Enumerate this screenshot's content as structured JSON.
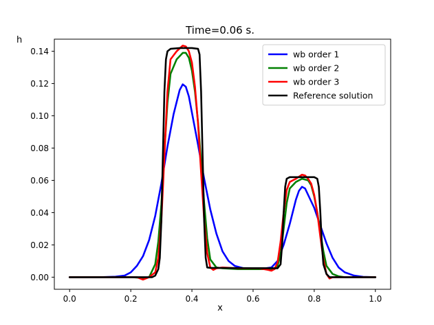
{
  "chart_data": {
    "type": "line",
    "title": "Time=0.06 s.",
    "xlabel": "x",
    "ylabel": "h",
    "xlim": [
      -0.05,
      1.05
    ],
    "ylim": [
      -0.0075,
      0.1475
    ],
    "xticks": [
      0.0,
      0.2,
      0.4,
      0.6,
      0.8,
      1.0
    ],
    "xtick_labels": [
      "0.0",
      "0.2",
      "0.4",
      "0.6",
      "0.8",
      "1.0"
    ],
    "yticks": [
      0.0,
      0.02,
      0.04,
      0.06,
      0.08,
      0.1,
      0.12,
      0.14
    ],
    "ytick_labels": [
      "0.00",
      "0.02",
      "0.04",
      "0.06",
      "0.08",
      "0.10",
      "0.12",
      "0.14"
    ],
    "grid": false,
    "legend_position": "top-right",
    "series": [
      {
        "name": "wb order 1",
        "color": "#0000ff",
        "points": [
          [
            0.0,
            0.0
          ],
          [
            0.1,
            0.0
          ],
          [
            0.15,
            0.0003
          ],
          [
            0.18,
            0.001
          ],
          [
            0.2,
            0.003
          ],
          [
            0.22,
            0.007
          ],
          [
            0.24,
            0.013
          ],
          [
            0.26,
            0.023
          ],
          [
            0.28,
            0.038
          ],
          [
            0.3,
            0.058
          ],
          [
            0.32,
            0.081
          ],
          [
            0.34,
            0.101
          ],
          [
            0.36,
            0.116
          ],
          [
            0.37,
            0.1195
          ],
          [
            0.38,
            0.118
          ],
          [
            0.39,
            0.112
          ],
          [
            0.4,
            0.102
          ],
          [
            0.42,
            0.082
          ],
          [
            0.44,
            0.061
          ],
          [
            0.46,
            0.042
          ],
          [
            0.48,
            0.027
          ],
          [
            0.5,
            0.016
          ],
          [
            0.52,
            0.01
          ],
          [
            0.54,
            0.007
          ],
          [
            0.57,
            0.0055
          ],
          [
            0.62,
            0.005
          ],
          [
            0.66,
            0.006
          ],
          [
            0.68,
            0.01
          ],
          [
            0.7,
            0.02
          ],
          [
            0.72,
            0.033
          ],
          [
            0.74,
            0.048
          ],
          [
            0.75,
            0.0535
          ],
          [
            0.76,
            0.056
          ],
          [
            0.77,
            0.055
          ],
          [
            0.78,
            0.051
          ],
          [
            0.8,
            0.043
          ],
          [
            0.82,
            0.032
          ],
          [
            0.84,
            0.021
          ],
          [
            0.86,
            0.012
          ],
          [
            0.88,
            0.006
          ],
          [
            0.9,
            0.003
          ],
          [
            0.93,
            0.001
          ],
          [
            0.96,
            0.0002
          ],
          [
            1.0,
            0.0
          ]
        ]
      },
      {
        "name": "wb order 2",
        "color": "#008000",
        "points": [
          [
            0.0,
            0.0
          ],
          [
            0.2,
            0.0
          ],
          [
            0.24,
            -0.0005
          ],
          [
            0.26,
            0.0
          ],
          [
            0.28,
            0.008
          ],
          [
            0.29,
            0.022
          ],
          [
            0.3,
            0.045
          ],
          [
            0.31,
            0.078
          ],
          [
            0.32,
            0.108
          ],
          [
            0.33,
            0.126
          ],
          [
            0.35,
            0.135
          ],
          [
            0.37,
            0.139
          ],
          [
            0.38,
            0.139
          ],
          [
            0.39,
            0.136
          ],
          [
            0.4,
            0.128
          ],
          [
            0.41,
            0.115
          ],
          [
            0.42,
            0.096
          ],
          [
            0.43,
            0.072
          ],
          [
            0.44,
            0.046
          ],
          [
            0.45,
            0.024
          ],
          [
            0.46,
            0.011
          ],
          [
            0.48,
            0.006
          ],
          [
            0.5,
            0.0055
          ],
          [
            0.55,
            0.005
          ],
          [
            0.62,
            0.005
          ],
          [
            0.67,
            0.005
          ],
          [
            0.68,
            0.007
          ],
          [
            0.69,
            0.014
          ],
          [
            0.7,
            0.03
          ],
          [
            0.71,
            0.046
          ],
          [
            0.72,
            0.055
          ],
          [
            0.74,
            0.059
          ],
          [
            0.76,
            0.061
          ],
          [
            0.78,
            0.06
          ],
          [
            0.79,
            0.057
          ],
          [
            0.8,
            0.05
          ],
          [
            0.81,
            0.04
          ],
          [
            0.82,
            0.028
          ],
          [
            0.83,
            0.016
          ],
          [
            0.84,
            0.007
          ],
          [
            0.86,
            0.002
          ],
          [
            0.88,
            0.0005
          ],
          [
            0.9,
            0.0
          ],
          [
            1.0,
            0.0
          ]
        ]
      },
      {
        "name": "wb order 3",
        "color": "#ff0000",
        "points": [
          [
            0.0,
            0.0
          ],
          [
            0.22,
            0.0
          ],
          [
            0.24,
            -0.0015
          ],
          [
            0.26,
            0.0
          ],
          [
            0.28,
            0.003
          ],
          [
            0.29,
            0.012
          ],
          [
            0.3,
            0.035
          ],
          [
            0.31,
            0.075
          ],
          [
            0.32,
            0.115
          ],
          [
            0.33,
            0.135
          ],
          [
            0.35,
            0.14
          ],
          [
            0.37,
            0.1435
          ],
          [
            0.38,
            0.143
          ],
          [
            0.39,
            0.14
          ],
          [
            0.4,
            0.133
          ],
          [
            0.41,
            0.118
          ],
          [
            0.42,
            0.095
          ],
          [
            0.43,
            0.065
          ],
          [
            0.44,
            0.036
          ],
          [
            0.45,
            0.015
          ],
          [
            0.46,
            0.006
          ],
          [
            0.47,
            0.0045
          ],
          [
            0.48,
            0.0055
          ],
          [
            0.5,
            0.006
          ],
          [
            0.55,
            0.0055
          ],
          [
            0.62,
            0.0055
          ],
          [
            0.65,
            0.0045
          ],
          [
            0.66,
            0.004
          ],
          [
            0.67,
            0.005
          ],
          [
            0.68,
            0.009
          ],
          [
            0.69,
            0.022
          ],
          [
            0.7,
            0.04
          ],
          [
            0.71,
            0.054
          ],
          [
            0.72,
            0.059
          ],
          [
            0.74,
            0.061
          ],
          [
            0.76,
            0.0635
          ],
          [
            0.77,
            0.063
          ],
          [
            0.78,
            0.061
          ],
          [
            0.79,
            0.058
          ],
          [
            0.8,
            0.051
          ],
          [
            0.81,
            0.04
          ],
          [
            0.82,
            0.025
          ],
          [
            0.83,
            0.011
          ],
          [
            0.84,
            0.002
          ],
          [
            0.85,
            -0.0008
          ],
          [
            0.86,
            0.0
          ],
          [
            0.88,
            0.0
          ],
          [
            1.0,
            0.0
          ]
        ]
      },
      {
        "name": "Reference solution",
        "color": "#000000",
        "points": [
          [
            0.0,
            0.0
          ],
          [
            0.24,
            0.0
          ],
          [
            0.27,
            0.0
          ],
          [
            0.28,
            0.001
          ],
          [
            0.29,
            0.005
          ],
          [
            0.295,
            0.012
          ],
          [
            0.3,
            0.035
          ],
          [
            0.305,
            0.075
          ],
          [
            0.31,
            0.115
          ],
          [
            0.315,
            0.135
          ],
          [
            0.32,
            0.14
          ],
          [
            0.33,
            0.1415
          ],
          [
            0.36,
            0.142
          ],
          [
            0.4,
            0.142
          ],
          [
            0.42,
            0.1415
          ],
          [
            0.425,
            0.138
          ],
          [
            0.43,
            0.115
          ],
          [
            0.435,
            0.075
          ],
          [
            0.44,
            0.035
          ],
          [
            0.445,
            0.012
          ],
          [
            0.45,
            0.006
          ],
          [
            0.46,
            0.0058
          ],
          [
            0.5,
            0.0057
          ],
          [
            0.6,
            0.0056
          ],
          [
            0.68,
            0.0055
          ],
          [
            0.69,
            0.008
          ],
          [
            0.695,
            0.02
          ],
          [
            0.7,
            0.04
          ],
          [
            0.705,
            0.056
          ],
          [
            0.71,
            0.061
          ],
          [
            0.72,
            0.062
          ],
          [
            0.8,
            0.062
          ],
          [
            0.81,
            0.061
          ],
          [
            0.815,
            0.056
          ],
          [
            0.82,
            0.04
          ],
          [
            0.825,
            0.02
          ],
          [
            0.83,
            0.008
          ],
          [
            0.84,
            0.002
          ],
          [
            0.85,
            0.0
          ],
          [
            1.0,
            0.0
          ]
        ]
      }
    ]
  }
}
